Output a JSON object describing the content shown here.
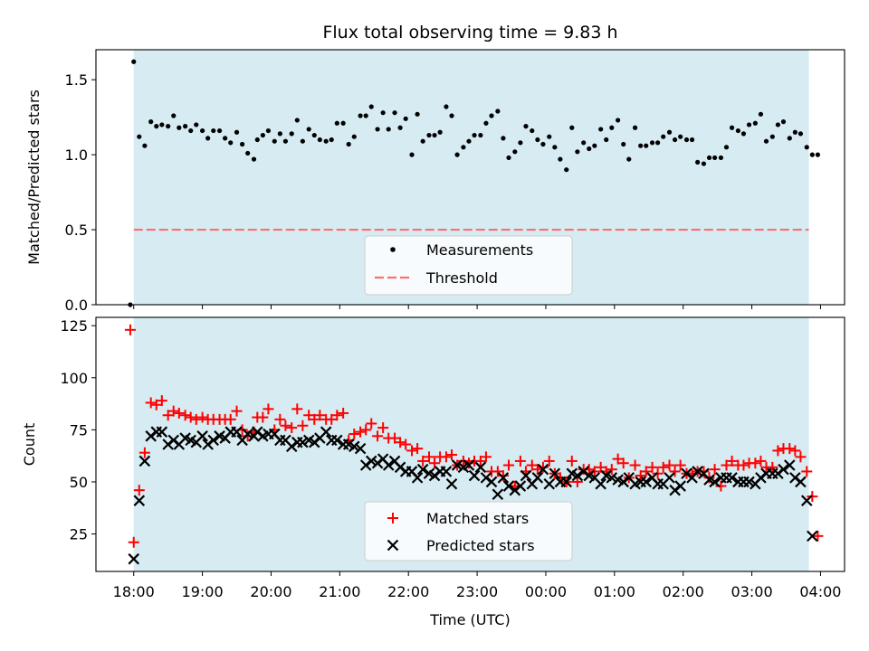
{
  "chart_data": [
    {
      "type": "scatter",
      "panel": "top",
      "title": "Flux total observing time = 9.83 h",
      "xlabel": "",
      "ylabel": "Matched/Predicted stars",
      "ylim": [
        0,
        1.7
      ],
      "xlim": [
        -0.55,
        10.35
      ],
      "yticks": [
        0.0,
        0.5,
        1.0,
        1.5
      ],
      "ytick_labels": [
        "0.0",
        "0.5",
        "1.0",
        "1.5"
      ],
      "shaded_span": [
        0.0,
        9.83
      ],
      "series": [
        {
          "name": "Measurements",
          "marker": "dot",
          "color": "#000000",
          "x": [
            -0.05,
            0.0,
            0.08,
            0.16,
            0.25,
            0.33,
            0.41,
            0.5,
            0.58,
            0.66,
            0.75,
            0.83,
            0.91,
            1.0,
            1.08,
            1.16,
            1.25,
            1.33,
            1.41,
            1.5,
            1.58,
            1.66,
            1.75,
            1.8,
            1.88,
            1.96,
            2.05,
            2.13,
            2.21,
            2.3,
            2.38,
            2.46,
            2.55,
            2.63,
            2.71,
            2.8,
            2.88,
            2.96,
            3.05,
            3.13,
            3.21,
            3.3,
            3.38,
            3.46,
            3.55,
            3.63,
            3.71,
            3.8,
            3.88,
            3.96,
            4.05,
            4.13,
            4.21,
            4.3,
            4.38,
            4.46,
            4.55,
            4.63,
            4.71,
            4.8,
            4.88,
            4.96,
            5.05,
            5.13,
            5.21,
            5.3,
            5.38,
            5.46,
            5.55,
            5.63,
            5.71,
            5.8,
            5.88,
            5.96,
            6.05,
            6.13,
            6.21,
            6.3,
            6.38,
            6.46,
            6.55,
            6.63,
            6.71,
            6.8,
            6.88,
            6.96,
            7.05,
            7.13,
            7.21,
            7.3,
            7.38,
            7.46,
            7.55,
            7.63,
            7.71,
            7.8,
            7.88,
            7.96,
            8.05,
            8.13,
            8.21,
            8.3,
            8.38,
            8.46,
            8.55,
            8.63,
            8.71,
            8.8,
            8.88,
            8.96,
            9.05,
            9.13,
            9.21,
            9.3,
            9.38,
            9.46,
            9.55,
            9.63,
            9.71,
            9.8,
            9.88,
            9.96
          ],
          "y": [
            0.0,
            1.62,
            1.12,
            1.06,
            1.22,
            1.19,
            1.2,
            1.19,
            1.26,
            1.18,
            1.19,
            1.16,
            1.2,
            1.16,
            1.11,
            1.16,
            1.16,
            1.11,
            1.08,
            1.15,
            1.07,
            1.01,
            0.97,
            1.1,
            1.13,
            1.16,
            1.09,
            1.14,
            1.09,
            1.14,
            1.23,
            1.09,
            1.17,
            1.13,
            1.1,
            1.09,
            1.1,
            1.21,
            1.21,
            1.07,
            1.12,
            1.26,
            1.26,
            1.32,
            1.17,
            1.28,
            1.17,
            1.28,
            1.18,
            1.24,
            1.0,
            1.27,
            1.09,
            1.13,
            1.13,
            1.15,
            1.32,
            1.26,
            1.0,
            1.05,
            1.09,
            1.13,
            1.13,
            1.21,
            1.26,
            1.29,
            1.11,
            0.98,
            1.02,
            1.08,
            1.19,
            1.16,
            1.1,
            1.07,
            1.12,
            1.05,
            0.97,
            0.9,
            1.18,
            1.02,
            1.08,
            1.04,
            1.06,
            1.17,
            1.1,
            1.18,
            1.23,
            1.07,
            0.97,
            1.18,
            1.06,
            1.06,
            1.08,
            1.08,
            1.12,
            1.15,
            1.1,
            1.12,
            1.1,
            1.1,
            0.95,
            0.94,
            0.98,
            0.98,
            0.98,
            1.05,
            1.18,
            1.16,
            1.14,
            1.2,
            1.21,
            1.27,
            1.09,
            1.12,
            1.2,
            1.22,
            1.11,
            1.15,
            1.14,
            1.05,
            1.0,
            1.0
          ]
        },
        {
          "name": "Threshold",
          "style": "dashed-line",
          "color": "#ff6e6e",
          "x": [
            0.0,
            9.83
          ],
          "y": [
            0.5,
            0.5
          ]
        }
      ],
      "legend": [
        "Measurements",
        "Threshold"
      ],
      "legend_position": "lower-center"
    },
    {
      "type": "scatter",
      "panel": "bottom",
      "title": "",
      "xlabel": "Time (UTC)",
      "ylabel": "Count",
      "ylim": [
        7,
        129
      ],
      "xlim": [
        -0.55,
        10.35
      ],
      "yticks": [
        25,
        50,
        75,
        100,
        125
      ],
      "ytick_labels": [
        "25",
        "50",
        "75",
        "100",
        "125"
      ],
      "xticks": [
        0,
        1,
        2,
        3,
        4,
        5,
        6,
        7,
        8,
        9,
        10
      ],
      "xtick_labels": [
        "18:00",
        "19:00",
        "20:00",
        "21:00",
        "22:00",
        "23:00",
        "00:00",
        "01:00",
        "02:00",
        "03:00",
        "04:00"
      ],
      "shaded_span": [
        0.0,
        9.83
      ],
      "series": [
        {
          "name": "Matched stars",
          "marker": "plus",
          "color": "#ff0000",
          "x": [
            -0.05,
            0.0,
            0.08,
            0.16,
            0.25,
            0.33,
            0.41,
            0.5,
            0.58,
            0.66,
            0.75,
            0.83,
            0.91,
            1.0,
            1.08,
            1.16,
            1.25,
            1.33,
            1.41,
            1.5,
            1.58,
            1.66,
            1.75,
            1.8,
            1.88,
            1.96,
            2.05,
            2.13,
            2.21,
            2.3,
            2.38,
            2.46,
            2.55,
            2.63,
            2.71,
            2.8,
            2.88,
            2.96,
            3.05,
            3.13,
            3.21,
            3.3,
            3.38,
            3.46,
            3.55,
            3.63,
            3.71,
            3.8,
            3.88,
            3.96,
            4.05,
            4.13,
            4.21,
            4.3,
            4.38,
            4.46,
            4.55,
            4.63,
            4.71,
            4.8,
            4.88,
            4.96,
            5.05,
            5.13,
            5.21,
            5.3,
            5.38,
            5.46,
            5.55,
            5.63,
            5.71,
            5.8,
            5.88,
            5.96,
            6.05,
            6.13,
            6.21,
            6.3,
            6.38,
            6.46,
            6.55,
            6.63,
            6.71,
            6.8,
            6.88,
            6.96,
            7.05,
            7.13,
            7.21,
            7.3,
            7.38,
            7.46,
            7.55,
            7.63,
            7.71,
            7.8,
            7.88,
            7.96,
            8.05,
            8.13,
            8.21,
            8.3,
            8.38,
            8.46,
            8.55,
            8.63,
            8.71,
            8.8,
            8.88,
            8.96,
            9.05,
            9.13,
            9.21,
            9.3,
            9.38,
            9.46,
            9.55,
            9.63,
            9.71,
            9.8,
            9.88,
            9.96
          ],
          "y": [
            123,
            21,
            46,
            64,
            88,
            87,
            89,
            82,
            84,
            83,
            82,
            81,
            80,
            81,
            80,
            80,
            80,
            80,
            80,
            84,
            75,
            72,
            74,
            81,
            81,
            85,
            75,
            80,
            77,
            76,
            85,
            77,
            82,
            80,
            82,
            80,
            80,
            82,
            83,
            70,
            73,
            74,
            75,
            78,
            72,
            76,
            71,
            71,
            69,
            68,
            65,
            66,
            60,
            62,
            59,
            62,
            62,
            63,
            58,
            60,
            59,
            60,
            60,
            62,
            55,
            55,
            53,
            58,
            48,
            60,
            55,
            58,
            56,
            57,
            60,
            54,
            52,
            50,
            60,
            50,
            56,
            56,
            55,
            57,
            55,
            56,
            61,
            59,
            52,
            58,
            53,
            55,
            57,
            54,
            57,
            58,
            55,
            58,
            54,
            54,
            55,
            55,
            52,
            56,
            48,
            58,
            60,
            58,
            58,
            59,
            59,
            60,
            57,
            57,
            65,
            66,
            66,
            65,
            62,
            55,
            43,
            24
          ]
        },
        {
          "name": "Predicted stars",
          "marker": "cross",
          "color": "#000000",
          "x": [
            -0.05,
            0.0,
            0.08,
            0.16,
            0.25,
            0.33,
            0.41,
            0.5,
            0.58,
            0.66,
            0.75,
            0.83,
            0.91,
            1.0,
            1.08,
            1.16,
            1.25,
            1.33,
            1.41,
            1.5,
            1.58,
            1.66,
            1.75,
            1.8,
            1.88,
            1.96,
            2.05,
            2.13,
            2.21,
            2.3,
            2.38,
            2.46,
            2.55,
            2.63,
            2.71,
            2.8,
            2.88,
            2.96,
            3.05,
            3.13,
            3.21,
            3.3,
            3.38,
            3.46,
            3.55,
            3.63,
            3.71,
            3.8,
            3.88,
            3.96,
            4.05,
            4.13,
            4.21,
            4.3,
            4.38,
            4.46,
            4.55,
            4.63,
            4.71,
            4.8,
            4.88,
            4.96,
            5.05,
            5.13,
            5.21,
            5.3,
            5.38,
            5.46,
            5.55,
            5.63,
            5.71,
            5.8,
            5.88,
            5.96,
            6.05,
            6.13,
            6.21,
            6.3,
            6.38,
            6.46,
            6.55,
            6.63,
            6.71,
            6.8,
            6.88,
            6.96,
            7.05,
            7.13,
            7.21,
            7.3,
            7.38,
            7.46,
            7.55,
            7.63,
            7.71,
            7.8,
            7.88,
            7.96,
            8.05,
            8.13,
            8.21,
            8.3,
            8.38,
            8.46,
            8.55,
            8.63,
            8.71,
            8.8,
            8.88,
            8.96,
            9.05,
            9.13,
            9.21,
            9.3,
            9.38,
            9.46,
            9.55,
            9.63,
            9.71,
            9.8,
            9.88,
            9.96
          ],
          "y": [
            null,
            13,
            41,
            60,
            72,
            74,
            74,
            68,
            70,
            68,
            71,
            70,
            69,
            72,
            68,
            70,
            72,
            71,
            74,
            74,
            70,
            73,
            72,
            74,
            72,
            73,
            73,
            70,
            70,
            67,
            69,
            69,
            70,
            69,
            71,
            74,
            70,
            70,
            68,
            68,
            67,
            66,
            58,
            60,
            59,
            61,
            58,
            60,
            57,
            55,
            55,
            52,
            56,
            54,
            53,
            55,
            55,
            49,
            58,
            57,
            58,
            53,
            57,
            52,
            50,
            44,
            52,
            48,
            46,
            48,
            53,
            49,
            52,
            56,
            49,
            54,
            50,
            50,
            54,
            53,
            55,
            53,
            52,
            49,
            53,
            52,
            51,
            50,
            52,
            49,
            50,
            50,
            52,
            49,
            49,
            52,
            46,
            48,
            54,
            52,
            55,
            54,
            51,
            50,
            52,
            52,
            52,
            50,
            50,
            50,
            49,
            52,
            54,
            54,
            54,
            56,
            58,
            52,
            50,
            41,
            24,
            null
          ]
        }
      ],
      "legend": [
        "Matched stars",
        "Predicted stars"
      ],
      "legend_position": "lower-center"
    }
  ]
}
